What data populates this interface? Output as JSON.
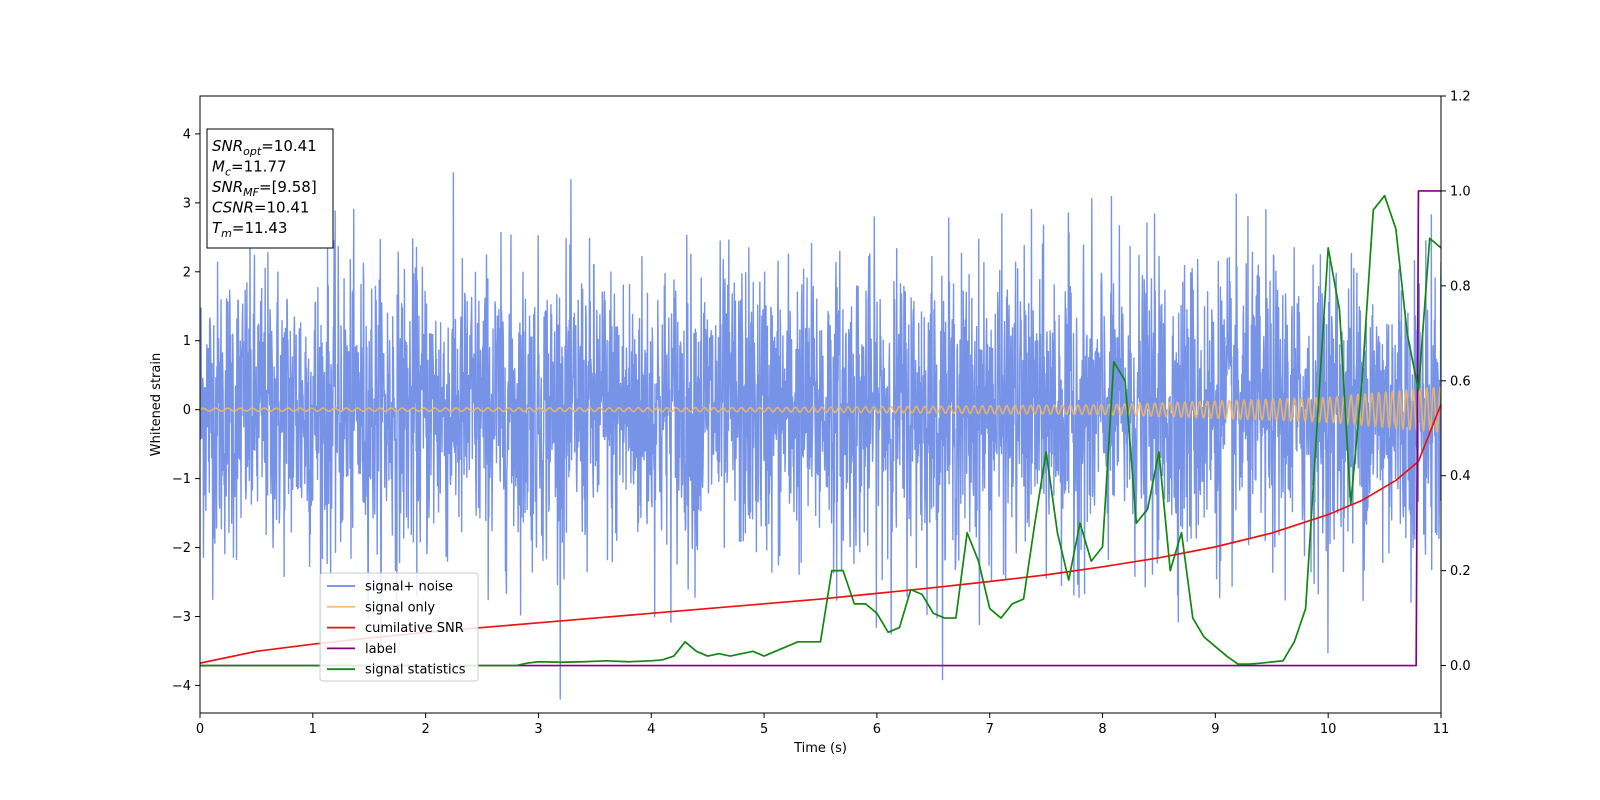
{
  "chart_data": {
    "type": "line",
    "xlabel": "Time (s)",
    "ylabel": "Whitened strain",
    "xlim": [
      0,
      11
    ],
    "ylim_left": [
      -4.4,
      4.55
    ],
    "ylim_right": [
      -0.1,
      1.2
    ],
    "x_ticks": [
      0,
      1,
      2,
      3,
      4,
      5,
      6,
      7,
      8,
      9,
      10,
      11
    ],
    "x_tick_labels": [
      "0",
      "1",
      "2",
      "3",
      "4",
      "5",
      "6",
      "7",
      "8",
      "9",
      "10",
      "11"
    ],
    "y_left_ticks": [
      -4,
      -3,
      -2,
      -1,
      0,
      1,
      2,
      3,
      4
    ],
    "y_left_tick_labels": [
      "−4",
      "−3",
      "−2",
      "−1",
      "0",
      "1",
      "2",
      "3",
      "4"
    ],
    "y_right_ticks": [
      0.0,
      0.2,
      0.4,
      0.6,
      0.8,
      1.0,
      1.2
    ],
    "y_right_tick_labels": [
      "0.0",
      "0.2",
      "0.4",
      "0.6",
      "0.8",
      "1.0",
      "1.2"
    ],
    "legend_position": "lower-left",
    "info_box": {
      "lines": [
        {
          "base": "SNR",
          "sub": "opt",
          "value": "=10.41"
        },
        {
          "base": "M",
          "sub": "c",
          "value": "=11.77"
        },
        {
          "base": "SNR",
          "sub": "MF",
          "value": "=[9.58]"
        },
        {
          "base": "CSNR",
          "sub": "",
          "value": "=10.41"
        },
        {
          "base": "T",
          "sub": "m",
          "value": "=11.43"
        }
      ]
    },
    "series": [
      {
        "name": "signal+ noise",
        "axis": "left",
        "color": "#6b8ae6",
        "style": "noise",
        "std": 1.0,
        "max_abs": 4.15
      },
      {
        "name": "signal only",
        "axis": "left",
        "color": "#f5b65c",
        "style": "chirp",
        "amplitude_envelope": [
          [
            0,
            0.02
          ],
          [
            5,
            0.03
          ],
          [
            8,
            0.07
          ],
          [
            10,
            0.18
          ],
          [
            11,
            0.33
          ]
        ]
      },
      {
        "name": "cumilative SNR",
        "axis": "right",
        "color": "#ee1111",
        "style": "line",
        "x": [
          0,
          0.5,
          1,
          1.5,
          2,
          2.5,
          3,
          3.5,
          4,
          4.5,
          5,
          5.5,
          6,
          6.5,
          7,
          7.5,
          8,
          8.5,
          9,
          9.5,
          10,
          10.3,
          10.6,
          10.8,
          11
        ],
        "y": [
          0.005,
          0.03,
          0.045,
          0.058,
          0.07,
          0.08,
          0.09,
          0.1,
          0.11,
          0.12,
          0.13,
          0.14,
          0.152,
          0.164,
          0.177,
          0.191,
          0.208,
          0.227,
          0.25,
          0.279,
          0.318,
          0.348,
          0.39,
          0.43,
          0.55
        ]
      },
      {
        "name": "label",
        "axis": "right",
        "color": "#800080",
        "style": "line",
        "x": [
          0,
          10.78,
          10.8,
          11
        ],
        "y": [
          0,
          0,
          1.0,
          1.0
        ]
      },
      {
        "name": "signal statistics",
        "axis": "right",
        "color": "#118811",
        "style": "line",
        "x": [
          0,
          1,
          2,
          2.8,
          2.9,
          3.0,
          3.2,
          3.4,
          3.6,
          3.8,
          4.0,
          4.1,
          4.2,
          4.3,
          4.4,
          4.5,
          4.6,
          4.7,
          4.8,
          4.9,
          5.0,
          5.1,
          5.2,
          5.3,
          5.4,
          5.5,
          5.6,
          5.7,
          5.8,
          5.9,
          6.0,
          6.1,
          6.2,
          6.3,
          6.4,
          6.5,
          6.6,
          6.7,
          6.8,
          6.9,
          7.0,
          7.1,
          7.2,
          7.3,
          7.4,
          7.5,
          7.6,
          7.7,
          7.8,
          7.9,
          8.0,
          8.1,
          8.2,
          8.3,
          8.4,
          8.5,
          8.6,
          8.7,
          8.8,
          8.9,
          9.0,
          9.1,
          9.2,
          9.3,
          9.4,
          9.6,
          9.7,
          9.8,
          9.9,
          10.0,
          10.1,
          10.2,
          10.3,
          10.4,
          10.5,
          10.6,
          10.7,
          10.8,
          10.9,
          11
        ],
        "y": [
          0,
          0,
          0,
          0,
          0.005,
          0.008,
          0.007,
          0.008,
          0.01,
          0.008,
          0.01,
          0.012,
          0.02,
          0.05,
          0.03,
          0.02,
          0.025,
          0.02,
          0.025,
          0.03,
          0.02,
          0.03,
          0.04,
          0.05,
          0.05,
          0.05,
          0.2,
          0.2,
          0.13,
          0.13,
          0.11,
          0.07,
          0.08,
          0.16,
          0.15,
          0.11,
          0.1,
          0.1,
          0.28,
          0.22,
          0.12,
          0.1,
          0.13,
          0.14,
          0.3,
          0.45,
          0.28,
          0.18,
          0.3,
          0.22,
          0.25,
          0.64,
          0.6,
          0.3,
          0.33,
          0.45,
          0.2,
          0.28,
          0.1,
          0.06,
          0.04,
          0.02,
          0.003,
          0.003,
          0.005,
          0.01,
          0.05,
          0.12,
          0.5,
          0.88,
          0.75,
          0.34,
          0.6,
          0.96,
          0.99,
          0.92,
          0.7,
          0.58,
          0.9,
          0.88
        ]
      }
    ]
  }
}
